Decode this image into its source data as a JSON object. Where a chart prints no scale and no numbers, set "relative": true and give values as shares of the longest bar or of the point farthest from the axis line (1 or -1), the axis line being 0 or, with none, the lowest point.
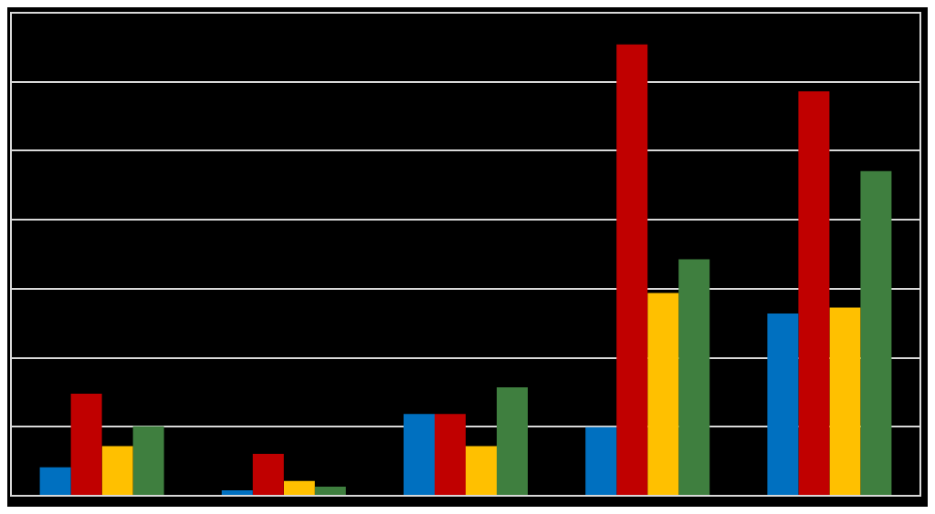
{
  "chart_data": {
    "type": "bar",
    "relative": true,
    "grid": "y",
    "categories": [
      null,
      null,
      null,
      null,
      null
    ],
    "series": [
      {
        "color": "#0070c0",
        "values": [
          0.063,
          0.012,
          0.181,
          0.152,
          0.404
        ]
      },
      {
        "color": "#c00000",
        "values": [
          0.226,
          0.093,
          0.181,
          1,
          0.896
        ]
      },
      {
        "color": "#ffc000",
        "values": [
          0.11,
          0.033,
          0.11,
          0.449,
          0.417
        ]
      },
      {
        "color": "#3f7f3f",
        "values": [
          0.154,
          0.02,
          0.24,
          0.524,
          0.719
        ]
      }
    ]
  }
}
